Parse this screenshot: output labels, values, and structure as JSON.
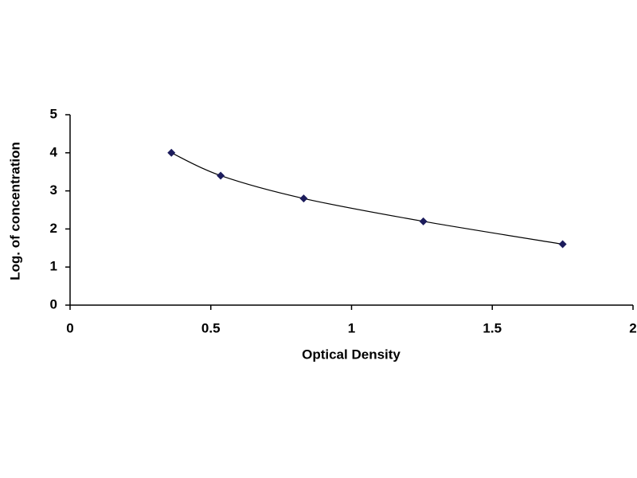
{
  "chart_data": {
    "type": "scatter",
    "x_label": "Optical Density",
    "y_label": "Log. of concentration",
    "x": [
      0.36,
      0.535,
      0.83,
      1.255,
      1.75
    ],
    "values": [
      4.0,
      3.4,
      2.8,
      2.2,
      1.6
    ],
    "color": "#1c1c5c",
    "smooth_line": true,
    "xlim": [
      0,
      2
    ],
    "xticks": [
      0,
      0.5,
      1,
      1.5,
      2
    ],
    "ylim": [
      0,
      5
    ],
    "yticks": [
      0,
      1,
      2,
      3,
      4,
      5
    ],
    "grid": false
  }
}
